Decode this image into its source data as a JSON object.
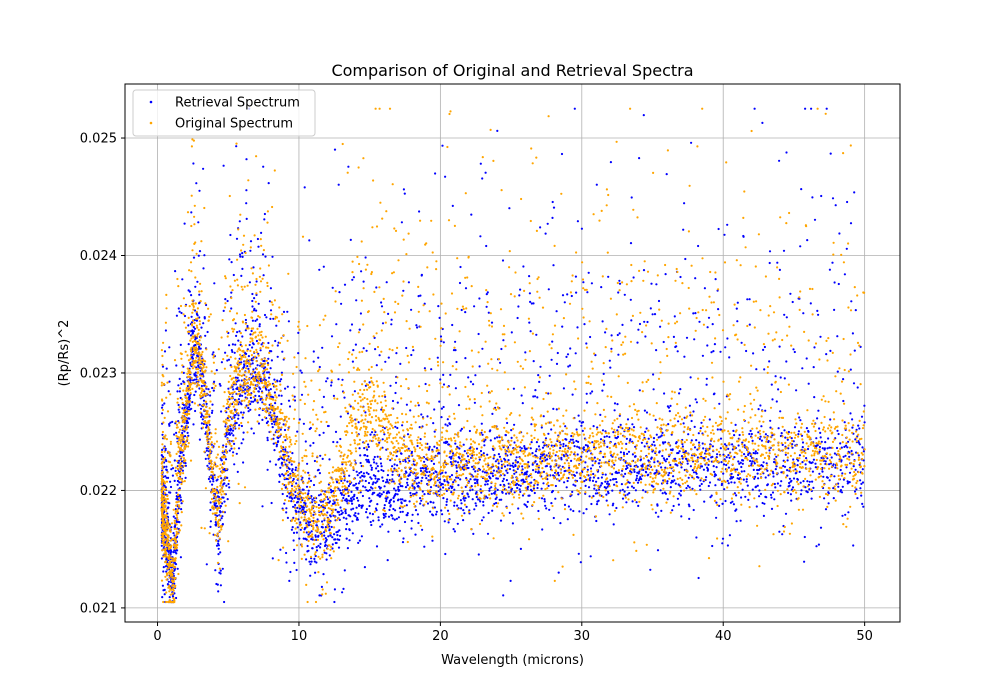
{
  "chart_data": {
    "type": "scatter",
    "title": "Comparison of Original and Retrieval Spectra",
    "xlabel": "Wavelength (microns)",
    "ylabel": "(Rp/Rs)^2",
    "xlim": [
      -2.3,
      52.5
    ],
    "ylim": [
      0.02088,
      0.02546
    ],
    "xticks": [
      0,
      10,
      20,
      30,
      40,
      50
    ],
    "yticks": [
      0.021,
      0.022,
      0.023,
      0.024,
      0.025
    ],
    "xtick_labels": [
      "0",
      "10",
      "20",
      "30",
      "40",
      "50"
    ],
    "ytick_labels": [
      "0.021",
      "0.022",
      "0.023",
      "0.024",
      "0.025"
    ],
    "grid": true,
    "legend_position": "top-left",
    "series": [
      {
        "name": "Retrieval Spectrum",
        "color": "#0000ff",
        "baseline": [
          [
            0.3,
            0.0219
          ],
          [
            0.8,
            0.0214
          ],
          [
            1.1,
            0.0212
          ],
          [
            1.5,
            0.022
          ],
          [
            2.0,
            0.0225
          ],
          [
            2.5,
            0.0232
          ],
          [
            3.0,
            0.023
          ],
          [
            3.5,
            0.0225
          ],
          [
            4.3,
            0.0216
          ],
          [
            5.0,
            0.0225
          ],
          [
            6.0,
            0.0229
          ],
          [
            7.0,
            0.023
          ],
          [
            8.0,
            0.0227
          ],
          [
            9.0,
            0.0222
          ],
          [
            10.0,
            0.02185
          ],
          [
            11.0,
            0.02165
          ],
          [
            12.0,
            0.0217
          ],
          [
            13.0,
            0.0218
          ],
          [
            14.0,
            0.02195
          ],
          [
            15.0,
            0.02205
          ],
          [
            16.0,
            0.022
          ],
          [
            17.0,
            0.022
          ],
          [
            18.0,
            0.02205
          ],
          [
            20.0,
            0.0221
          ],
          [
            25.0,
            0.02215
          ],
          [
            30.0,
            0.0222
          ],
          [
            35.0,
            0.0222
          ],
          [
            40.0,
            0.0222
          ],
          [
            45.0,
            0.0222
          ],
          [
            50.0,
            0.0222
          ]
        ]
      },
      {
        "name": "Original Spectrum",
        "color": "#ffa500",
        "baseline": [
          [
            0.3,
            0.0219
          ],
          [
            0.8,
            0.0214
          ],
          [
            1.1,
            0.0211
          ],
          [
            1.5,
            0.0221
          ],
          [
            2.0,
            0.0226
          ],
          [
            2.5,
            0.0233
          ],
          [
            3.0,
            0.0231
          ],
          [
            3.5,
            0.0226
          ],
          [
            4.3,
            0.0217
          ],
          [
            5.0,
            0.0226
          ],
          [
            6.0,
            0.023
          ],
          [
            7.0,
            0.0231
          ],
          [
            8.0,
            0.0228
          ],
          [
            9.0,
            0.0223
          ],
          [
            10.0,
            0.0219
          ],
          [
            11.0,
            0.0217
          ],
          [
            12.0,
            0.0218
          ],
          [
            13.0,
            0.0221
          ],
          [
            14.0,
            0.0225
          ],
          [
            15.0,
            0.0227
          ],
          [
            16.0,
            0.0225
          ],
          [
            17.0,
            0.0223
          ],
          [
            18.0,
            0.0222
          ],
          [
            20.0,
            0.0222
          ],
          [
            25.0,
            0.02225
          ],
          [
            30.0,
            0.02228
          ],
          [
            35.0,
            0.0223
          ],
          [
            40.0,
            0.0223
          ],
          [
            45.0,
            0.0223
          ],
          [
            50.0,
            0.02225
          ]
        ]
      }
    ]
  }
}
